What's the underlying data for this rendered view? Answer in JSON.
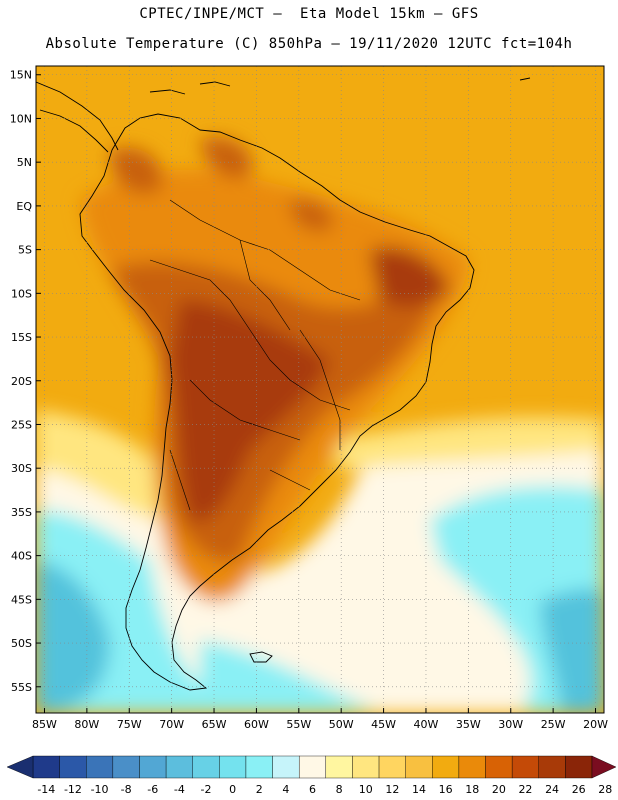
{
  "header": {
    "line1": "CPTEC/INPE/MCT –  Eta Model 15km – GFS",
    "line2": "Absolute Temperature (C) 850hPa – 19/11/2020 12UTC fct=104h"
  },
  "map": {
    "lon_range": [
      -86,
      -19
    ],
    "lat_range": [
      -58,
      16
    ],
    "lat_labels": [
      "15N",
      "10N",
      "5N",
      "EQ",
      "5S",
      "10S",
      "15S",
      "20S",
      "25S",
      "30S",
      "35S",
      "40S",
      "45S",
      "50S",
      "55S"
    ],
    "lon_labels": [
      "85W",
      "80W",
      "75W",
      "70W",
      "65W",
      "60W",
      "55W",
      "50W",
      "45W",
      "40W",
      "35W",
      "30W",
      "25W",
      "20W"
    ]
  },
  "colorbar": {
    "labels": [
      "-14",
      "-12",
      "-10",
      "-8",
      "-6",
      "-4",
      "-2",
      "0",
      "2",
      "4",
      "6",
      "8",
      "10",
      "12",
      "14",
      "16",
      "18",
      "20",
      "22",
      "24",
      "26",
      "28"
    ],
    "colors": [
      "#1f3a8a",
      "#2b58a8",
      "#3a74b8",
      "#4a8fc8",
      "#52a7d4",
      "#5cbedd",
      "#67d1e6",
      "#74e2ee",
      "#8af0f5",
      "#c6f4fa",
      "#fff8e6",
      "#fff6a0",
      "#ffe680",
      "#ffd560",
      "#f8c040",
      "#f2ab10",
      "#ea8a0a",
      "#d86205",
      "#c44a07",
      "#a83a08",
      "#8a2508"
    ],
    "end_colors": [
      "#1a2f70",
      "#7a0d20"
    ]
  },
  "field_colors": {
    "ocean_warm": "#f2ab10",
    "ocean_mid": "#f5bf3a",
    "land_warm": "#ea8a0a",
    "land_hot": "#c8600a",
    "land_hottest": "#a83a08",
    "cool_pale": "#fff8e6",
    "cool_yellow": "#ffe680",
    "cold_light": "#8af0f5",
    "cold_mid": "#52c2dc",
    "cold_deep": "#3a8cc8"
  }
}
